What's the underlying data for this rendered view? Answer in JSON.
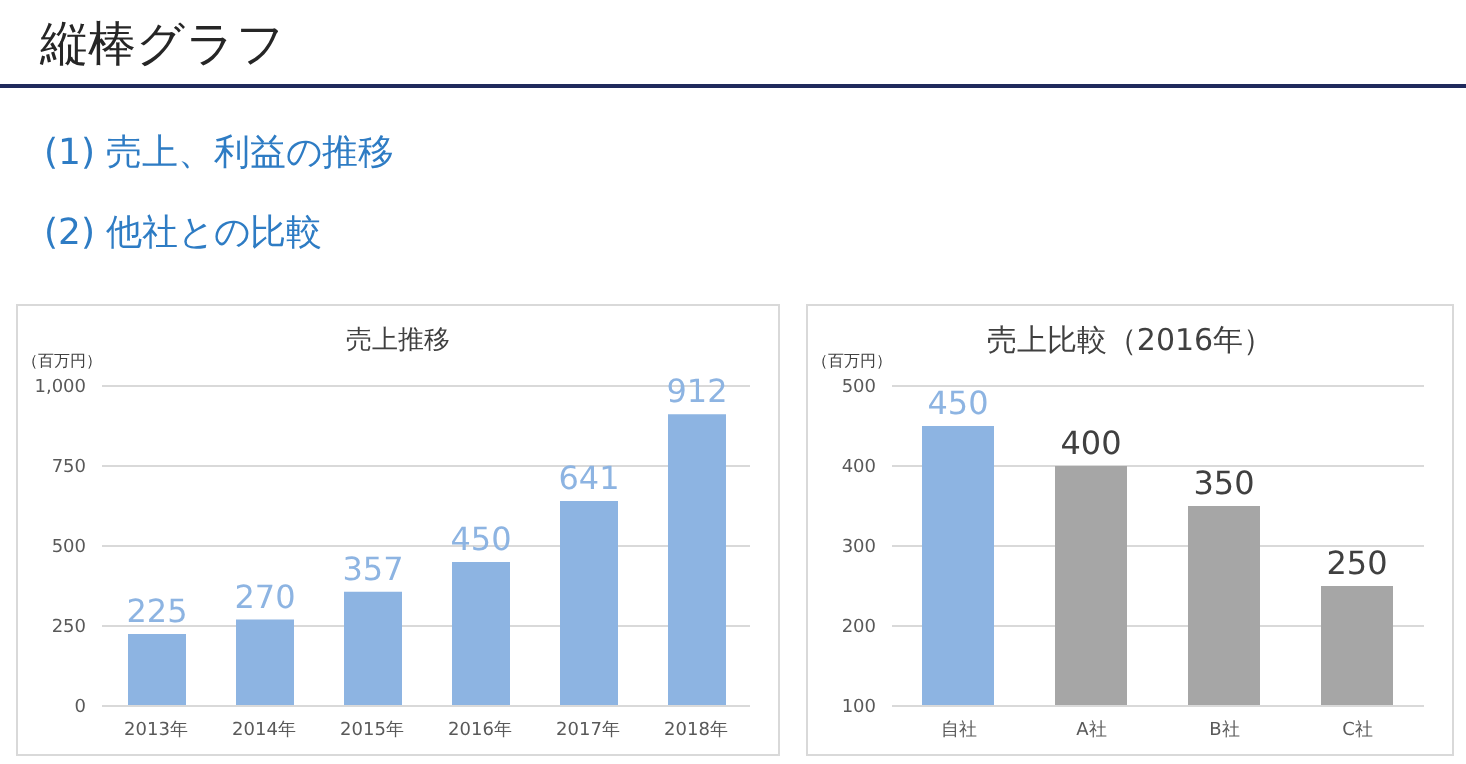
{
  "chart_data": [
    {
      "type": "bar",
      "title": "売上推移",
      "ylabel": "（百万円）",
      "annotations": [
        "縦棒グラフ",
        "(1) 売上、利益の推移",
        "(2) 他社との比較"
      ],
      "categories": [
        "2013年",
        "2014年",
        "2015年",
        "2016年",
        "2017年",
        "2018年"
      ],
      "values": [
        225,
        270,
        357,
        450,
        641,
        912
      ],
      "color": "#8db4e2",
      "ylim": [
        0,
        1000
      ],
      "yticks": [
        0,
        250,
        500,
        750,
        {
          "value": 1000,
          "label": "1,000"
        }
      ],
      "grid": "y",
      "data_labels": true
    },
    {
      "type": "bar",
      "title": "売上比較（2016年）",
      "ylabel": "（百万円）",
      "categories": [
        "自社",
        "A社",
        "B社",
        "C社"
      ],
      "values": [
        450,
        400,
        350,
        250
      ],
      "colors": [
        "#8db4e2",
        "#a6a6a6",
        "#a6a6a6",
        "#a6a6a6"
      ],
      "ylim": [
        100,
        500
      ],
      "yticks": [
        100,
        200,
        300,
        400,
        500
      ],
      "grid": "y",
      "data_labels": true
    }
  ]
}
